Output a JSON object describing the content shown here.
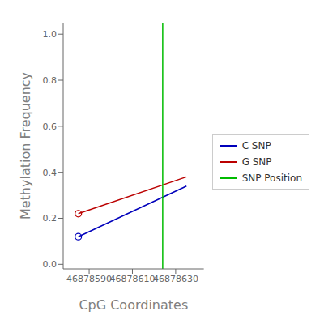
{
  "chart_data": {
    "type": "line",
    "xlabel": "CpG Coordinates",
    "ylabel": "Methylation Frequency",
    "x": [
      46878585,
      46878635
    ],
    "series": [
      {
        "name": "C SNP",
        "color": "#0000BB",
        "values": [
          0.12,
          0.34
        ],
        "marker": "circle"
      },
      {
        "name": "G SNP",
        "color": "#BB0000",
        "values": [
          0.22,
          0.38
        ],
        "marker": "circle"
      }
    ],
    "reference_lines": [
      {
        "name": "SNP Position",
        "x": 46878624,
        "color": "#00BB00"
      }
    ],
    "xlim": [
      46878578,
      46878643
    ],
    "ylim": [
      -0.02,
      1.05
    ],
    "xticks": [
      46878590,
      46878610,
      46878630
    ],
    "yticks": [
      {
        "value": 0,
        "label": "0.0"
      },
      0.2,
      0.4,
      0.6,
      0.8,
      {
        "value": 1,
        "label": "1.0"
      }
    ],
    "grid": false,
    "legend": "right"
  }
}
